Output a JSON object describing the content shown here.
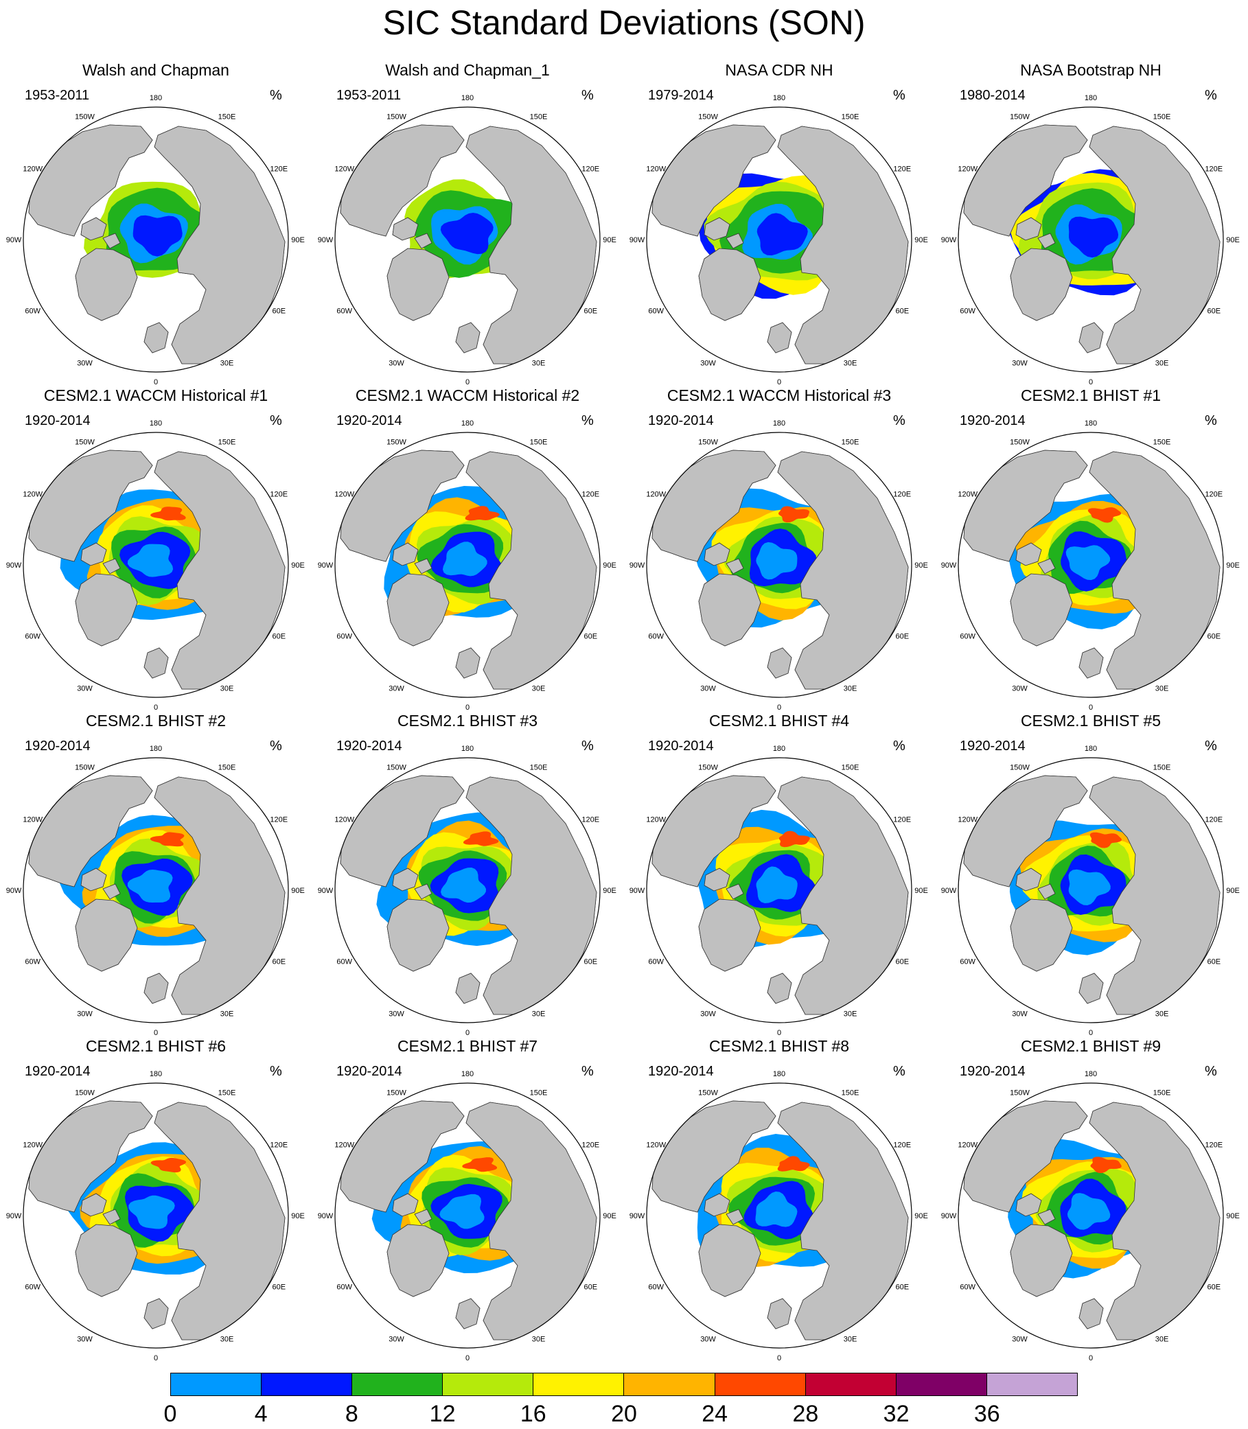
{
  "title": "SIC Standard Deviations (SON)",
  "units": "%",
  "longitude_labels": [
    "180",
    "150E",
    "120E",
    "90E",
    "60E",
    "30E",
    "0",
    "30W",
    "60W",
    "90W",
    "120W",
    "150W"
  ],
  "colors": {
    "land": "#c0c0c0",
    "ocean": "#ffffff",
    "outline": "#000000"
  },
  "chart_data": {
    "type": "heatmap",
    "projection": "north polar stereographic",
    "panels": [
      {
        "name": "Walsh and Chapman",
        "period": "1953-2011",
        "units": "%"
      },
      {
        "name": "Walsh and Chapman_1",
        "period": "1953-2011",
        "units": "%"
      },
      {
        "name": "NASA CDR NH",
        "period": "1979-2014",
        "units": "%"
      },
      {
        "name": "NASA Bootstrap NH",
        "period": "1980-2014",
        "units": "%"
      },
      {
        "name": "CESM2.1 WACCM Historical #1",
        "period": "1920-2014",
        "units": "%"
      },
      {
        "name": "CESM2.1 WACCM Historical #2",
        "period": "1920-2014",
        "units": "%"
      },
      {
        "name": "CESM2.1 WACCM Historical #3",
        "period": "1920-2014",
        "units": "%"
      },
      {
        "name": "CESM2.1 BHIST #1",
        "period": "1920-2014",
        "units": "%"
      },
      {
        "name": "CESM2.1 BHIST #2",
        "period": "1920-2014",
        "units": "%"
      },
      {
        "name": "CESM2.1 BHIST #3",
        "period": "1920-2014",
        "units": "%"
      },
      {
        "name": "CESM2.1 BHIST #4",
        "period": "1920-2014",
        "units": "%"
      },
      {
        "name": "CESM2.1 BHIST #5",
        "period": "1920-2014",
        "units": "%"
      },
      {
        "name": "CESM2.1 BHIST #6",
        "period": "1920-2014",
        "units": "%"
      },
      {
        "name": "CESM2.1 BHIST #7",
        "period": "1920-2014",
        "units": "%"
      },
      {
        "name": "CESM2.1 BHIST #8",
        "period": "1920-2014",
        "units": "%"
      },
      {
        "name": "CESM2.1 BHIST #9",
        "period": "1920-2014",
        "units": "%"
      }
    ],
    "colorbar": {
      "levels": [
        0,
        4,
        8,
        12,
        16,
        20,
        24,
        28,
        32,
        36
      ],
      "colors": [
        "#0099ff",
        "#0018ff",
        "#21b21d",
        "#b5ea0b",
        "#fff200",
        "#ffb400",
        "#ff4800",
        "#c20033",
        "#7f0066",
        "#c5a3d6"
      ]
    }
  }
}
